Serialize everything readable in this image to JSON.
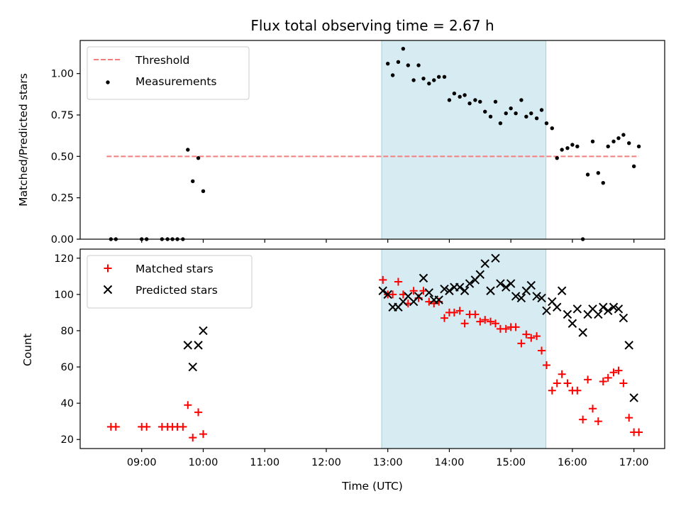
{
  "chart_data": [
    {
      "type": "scatter",
      "title": "Flux total observing time = 2.67 h",
      "ylabel": "Matched/Predicted stars",
      "xlabel": "",
      "xlim": [
        8.0,
        17.5
      ],
      "ylim": [
        0.0,
        1.2
      ],
      "yticks": [
        "0.00",
        "0.25",
        "0.50",
        "0.75",
        "1.00"
      ],
      "grid": false,
      "legend_position": "top-left",
      "shaded_interval": [
        12.9,
        15.57
      ],
      "threshold": {
        "name": "Threshold",
        "value": 0.5,
        "x": [
          8.43,
          17.08
        ],
        "color": "#f08080",
        "style": "dashed"
      },
      "series": [
        {
          "name": "Measurements",
          "color": "#000000",
          "marker": "dot",
          "x": [
            8.5,
            8.58,
            9.0,
            9.08,
            9.33,
            9.42,
            9.5,
            9.58,
            9.67,
            9.75,
            9.83,
            9.92,
            10.0,
            13.0,
            13.08,
            13.17,
            13.25,
            13.33,
            13.42,
            13.5,
            13.58,
            13.67,
            13.75,
            13.83,
            13.92,
            14.0,
            14.08,
            14.17,
            14.25,
            14.33,
            14.42,
            14.5,
            14.58,
            14.67,
            14.75,
            14.83,
            14.92,
            15.0,
            15.08,
            15.17,
            15.25,
            15.33,
            15.42,
            15.5,
            15.58,
            15.67,
            15.75,
            15.83,
            15.92,
            16.0,
            16.08,
            16.17,
            16.25,
            16.33,
            16.42,
            16.5,
            16.58,
            16.67,
            16.75,
            16.83,
            16.92,
            17.0,
            17.08
          ],
          "y": [
            0.0,
            0.0,
            0.0,
            0.0,
            0.0,
            0.0,
            0.0,
            0.0,
            0.0,
            0.54,
            0.35,
            0.49,
            0.29,
            1.06,
            0.99,
            1.07,
            1.15,
            1.05,
            0.96,
            1.05,
            0.97,
            0.94,
            0.96,
            0.98,
            0.98,
            0.84,
            0.88,
            0.86,
            0.87,
            0.82,
            0.84,
            0.83,
            0.77,
            0.74,
            0.83,
            0.7,
            0.76,
            0.79,
            0.76,
            0.84,
            0.74,
            0.76,
            0.73,
            0.78,
            0.7,
            0.67,
            0.49,
            0.54,
            0.55,
            0.57,
            0.56,
            0.0,
            0.39,
            0.59,
            0.4,
            0.34,
            0.56,
            0.59,
            0.61,
            0.63,
            0.58,
            0.44,
            0.56
          ]
        }
      ]
    },
    {
      "type": "scatter",
      "title": "",
      "ylabel": "Count",
      "xlabel": "Time (UTC)",
      "xlim": [
        8.0,
        17.5
      ],
      "ylim": [
        15,
        125
      ],
      "yticks": [
        "20",
        "40",
        "60",
        "80",
        "100",
        "120"
      ],
      "xticks": [
        "09:00",
        "10:00",
        "11:00",
        "12:00",
        "13:00",
        "14:00",
        "15:00",
        "16:00",
        "17:00"
      ],
      "grid": false,
      "legend_position": "top-left",
      "shaded_interval": [
        12.9,
        15.57
      ],
      "series": [
        {
          "name": "Matched stars",
          "color": "#ff0000",
          "marker": "plus",
          "x": [
            8.5,
            8.58,
            9.0,
            9.08,
            9.33,
            9.42,
            9.5,
            9.58,
            9.67,
            9.75,
            9.83,
            9.92,
            10.0,
            12.92,
            13.0,
            13.08,
            13.17,
            13.25,
            13.33,
            13.42,
            13.5,
            13.58,
            13.67,
            13.75,
            13.83,
            13.92,
            14.0,
            14.08,
            14.17,
            14.25,
            14.33,
            14.42,
            14.5,
            14.58,
            14.67,
            14.75,
            14.83,
            14.92,
            15.0,
            15.08,
            15.17,
            15.25,
            15.33,
            15.42,
            15.5,
            15.58,
            15.67,
            15.75,
            15.83,
            15.92,
            16.0,
            16.08,
            16.17,
            16.25,
            16.33,
            16.42,
            16.5,
            16.58,
            16.67,
            16.75,
            16.83,
            16.92,
            17.0,
            17.08
          ],
          "y": [
            27,
            27,
            27,
            27,
            27,
            27,
            27,
            27,
            27,
            39,
            21,
            35,
            23,
            108,
            100,
            100,
            107,
            100,
            95,
            102,
            98,
            102,
            96,
            95,
            96,
            87,
            90,
            90,
            91,
            84,
            89,
            89,
            85,
            86,
            85,
            84,
            81,
            81,
            82,
            82,
            73,
            78,
            76,
            77,
            69,
            61,
            47,
            51,
            56,
            51,
            47,
            47,
            31,
            53,
            37,
            30,
            52,
            54,
            57,
            58,
            51,
            32,
            24,
            24
          ]
        },
        {
          "name": "Predicted stars",
          "color": "#000000",
          "marker": "cross",
          "x": [
            9.75,
            9.83,
            9.92,
            10.0,
            12.92,
            13.0,
            13.08,
            13.17,
            13.25,
            13.33,
            13.42,
            13.5,
            13.58,
            13.67,
            13.75,
            13.83,
            13.92,
            14.0,
            14.08,
            14.17,
            14.25,
            14.33,
            14.42,
            14.5,
            14.58,
            14.67,
            14.75,
            14.83,
            14.92,
            15.0,
            15.08,
            15.17,
            15.25,
            15.33,
            15.42,
            15.5,
            15.58,
            15.67,
            15.75,
            15.83,
            15.92,
            16.0,
            16.08,
            16.17,
            16.25,
            16.33,
            16.42,
            16.5,
            16.58,
            16.67,
            16.75,
            16.83,
            16.92,
            17.0
          ],
          "y": [
            72,
            60,
            72,
            80,
            102,
            100,
            93,
            93,
            96,
            99,
            96,
            99,
            109,
            101,
            97,
            97,
            103,
            102,
            104,
            104,
            102,
            106,
            108,
            111,
            117,
            102,
            120,
            106,
            104,
            106,
            99,
            98,
            102,
            105,
            99,
            98,
            91,
            96,
            93,
            102,
            89,
            84,
            92,
            79,
            89,
            92,
            89,
            93,
            91,
            93,
            92,
            87,
            72,
            43
          ]
        }
      ]
    }
  ]
}
